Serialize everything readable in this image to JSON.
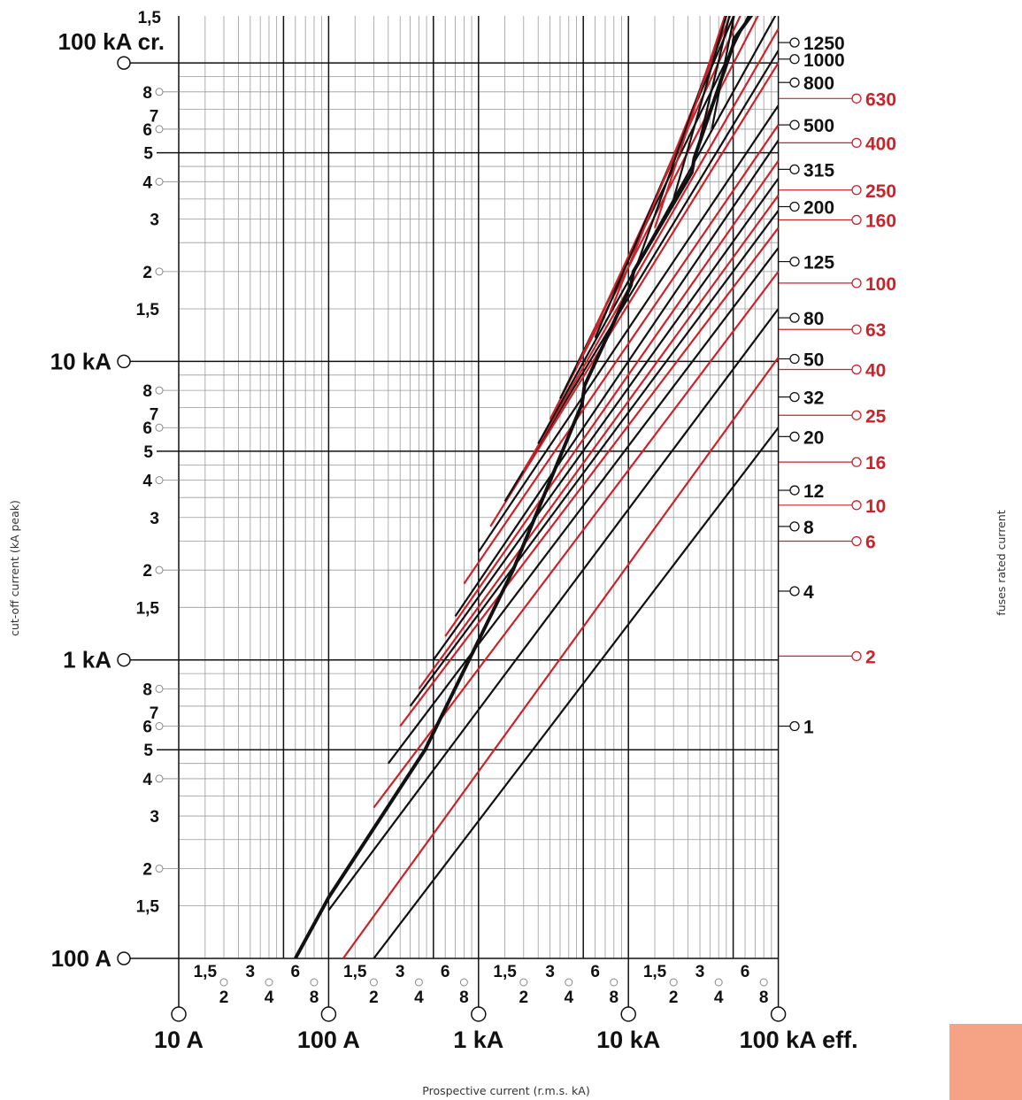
{
  "chart_data": {
    "type": "line",
    "xscale": "log",
    "yscale": "log",
    "xlabel": "Prospective current (r.m.s. kA)",
    "ylabel": "cut-off current (kA peak)",
    "right_label": "fuses rated current",
    "xlim": [
      0.01,
      100
    ],
    "ylim": [
      0.1,
      150
    ],
    "grid": true,
    "x_major_ticks": [
      {
        "value": 0.01,
        "label": "10 A"
      },
      {
        "value": 0.1,
        "label": "100 A"
      },
      {
        "value": 1,
        "label": "1 kA"
      },
      {
        "value": 10,
        "label": "10 kA"
      },
      {
        "value": 100,
        "label": "100 kA eff."
      }
    ],
    "x_minor_ticks": [
      {
        "m": 1.5,
        "label": "1,5",
        "row": 1
      },
      {
        "m": 2,
        "label": "2",
        "row": 2
      },
      {
        "m": 3,
        "label": "3",
        "row": 1
      },
      {
        "m": 4,
        "label": "4",
        "row": 2
      },
      {
        "m": 6,
        "label": "6",
        "row": 1
      },
      {
        "m": 8,
        "label": "8",
        "row": 2
      }
    ],
    "y_major_ticks": [
      {
        "value": 0.1,
        "label": "100 A"
      },
      {
        "value": 1,
        "label": "1 kA"
      },
      {
        "value": 10,
        "label": "10 kA"
      },
      {
        "value": 100,
        "label": "100 kA cr."
      }
    ],
    "y_minor_ticks": [
      {
        "m": 1.5,
        "label": "1,5"
      },
      {
        "m": 2,
        "label": "2"
      },
      {
        "m": 3,
        "label": "3"
      },
      {
        "m": 4,
        "label": "4"
      },
      {
        "m": 5,
        "label": "5"
      },
      {
        "m": 6,
        "label": "6"
      },
      {
        "m": 7,
        "label": "7"
      },
      {
        "m": 8,
        "label": "8"
      }
    ],
    "top_tick_label": "1,5",
    "envelope": {
      "name": "",
      "x": [
        0.06,
        0.1,
        0.44,
        1.7,
        4.9,
        5.1,
        10.4,
        10.8,
        26.5,
        27.5,
        50,
        50.5,
        70
      ],
      "y": [
        0.1,
        0.16,
        0.5,
        2.0,
        7.2,
        8.3,
        18,
        20,
        43,
        48,
        115,
        120,
        150
      ]
    },
    "series": [
      {
        "label": "1",
        "color": "#111111",
        "x": [
          0.2,
          100
        ],
        "y": [
          0.1,
          6.0
        ]
      },
      {
        "label": "2",
        "color": "#cc2229",
        "x": [
          0.125,
          100
        ],
        "y": [
          0.1,
          10.3
        ]
      },
      {
        "label": "4",
        "color": "#111111",
        "x": [
          0.1,
          100
        ],
        "y": [
          0.145,
          15
        ]
      },
      {
        "label": "6",
        "color": "#cc2229",
        "x": [
          0.2,
          100
        ],
        "y": [
          0.32,
          20
        ]
      },
      {
        "label": "8",
        "color": "#111111",
        "x": [
          0.25,
          100
        ],
        "y": [
          0.45,
          24
        ]
      },
      {
        "label": "10",
        "color": "#cc2229",
        "x": [
          0.3,
          100
        ],
        "y": [
          0.6,
          28
        ]
      },
      {
        "label": "12",
        "color": "#111111",
        "x": [
          0.35,
          100
        ],
        "y": [
          0.7,
          32
        ]
      },
      {
        "label": "16",
        "color": "#cc2229",
        "x": [
          0.4,
          100
        ],
        "y": [
          0.8,
          36
        ]
      },
      {
        "label": "20",
        "color": "#111111",
        "x": [
          0.5,
          100
        ],
        "y": [
          1.0,
          41
        ]
      },
      {
        "label": "25",
        "color": "#cc2229",
        "x": [
          0.6,
          100
        ],
        "y": [
          1.2,
          47
        ]
      },
      {
        "label": "32",
        "color": "#111111",
        "x": [
          0.7,
          100
        ],
        "y": [
          1.4,
          55
        ]
      },
      {
        "label": "40",
        "color": "#cc2229",
        "x": [
          0.8,
          100
        ],
        "y": [
          1.8,
          62
        ]
      },
      {
        "label": "50",
        "color": "#111111",
        "x": [
          1.0,
          100
        ],
        "y": [
          2.3,
          72
        ]
      },
      {
        "label": "63",
        "color": "#cc2229",
        "x": [
          1.2,
          100
        ],
        "y": [
          2.8,
          100
        ]
      },
      {
        "label": "80",
        "color": "#111111",
        "x": [
          1.5,
          100
        ],
        "y": [
          3.4,
          110
        ]
      },
      {
        "label": "100",
        "color": "#cc2229",
        "x": [
          2.0,
          100
        ],
        "y": [
          4.3,
          130
        ]
      },
      {
        "label": "125",
        "color": "#111111",
        "x": [
          2.5,
          100
        ],
        "y": [
          5.3,
          150
        ]
      },
      {
        "label": "160",
        "color": "#cc2229",
        "x": [
          3.0,
          100
        ],
        "y": [
          6.4,
          195
        ]
      },
      {
        "label": "200",
        "color": "#111111",
        "x": [
          3.5,
          100
        ],
        "y": [
          7.5,
          230
        ]
      },
      {
        "label": "250",
        "color": "#cc2229",
        "x": [
          4.5,
          100
        ],
        "y": [
          9.5,
          270
        ]
      },
      {
        "label": "315",
        "color": "#111111",
        "x": [
          6.0,
          100
        ],
        "y": [
          12,
          320
        ]
      },
      {
        "label": "400",
        "color": "#cc2229",
        "x": [
          7.5,
          100
        ],
        "y": [
          14.5,
          360
        ]
      },
      {
        "label": "500",
        "color": "#111111",
        "x": [
          10,
          100
        ],
        "y": [
          17.5,
          440
        ]
      },
      {
        "label": "630",
        "color": "#cc2229",
        "x": [
          15,
          100
        ],
        "y": [
          28,
          500
        ]
      },
      {
        "label": "800",
        "color": "#111111",
        "x": [
          20,
          100
        ],
        "y": [
          35,
          580
        ]
      },
      {
        "label": "1000",
        "color": "#111111",
        "x": [
          28,
          100
        ],
        "y": [
          48,
          700
        ]
      },
      {
        "label": "1250",
        "color": "#111111",
        "x": [
          36,
          100
        ],
        "y": [
          60,
          820
        ]
      }
    ],
    "fuse_labels": [
      {
        "text": "1",
        "color": "#111111",
        "y": 0.6
      },
      {
        "text": "2",
        "color": "#cc2229",
        "y": 1.03
      },
      {
        "text": "4",
        "color": "#111111",
        "y": 1.7
      },
      {
        "text": "6",
        "color": "#cc2229",
        "y": 2.5
      },
      {
        "text": "8",
        "color": "#111111",
        "y": 2.8
      },
      {
        "text": "10",
        "color": "#cc2229",
        "y": 3.3
      },
      {
        "text": "12",
        "color": "#111111",
        "y": 3.7
      },
      {
        "text": "16",
        "color": "#cc2229",
        "y": 4.6
      },
      {
        "text": "20",
        "color": "#111111",
        "y": 5.6
      },
      {
        "text": "25",
        "color": "#cc2229",
        "y": 6.6
      },
      {
        "text": "32",
        "color": "#111111",
        "y": 7.6
      },
      {
        "text": "40",
        "color": "#cc2229",
        "y": 9.4
      },
      {
        "text": "50",
        "color": "#111111",
        "y": 10.2
      },
      {
        "text": "63",
        "color": "#cc2229",
        "y": 12.8
      },
      {
        "text": "80",
        "color": "#111111",
        "y": 14
      },
      {
        "text": "100",
        "color": "#cc2229",
        "y": 18.3
      },
      {
        "text": "125",
        "color": "#111111",
        "y": 21.6
      },
      {
        "text": "160",
        "color": "#cc2229",
        "y": 29.8
      },
      {
        "text": "200",
        "color": "#111111",
        "y": 33
      },
      {
        "text": "250",
        "color": "#cc2229",
        "y": 37.5
      },
      {
        "text": "315",
        "color": "#111111",
        "y": 44
      },
      {
        "text": "400",
        "color": "#cc2229",
        "y": 54
      },
      {
        "text": "500",
        "color": "#111111",
        "y": 62
      },
      {
        "text": "630",
        "color": "#cc2229",
        "y": 76
      },
      {
        "text": "800",
        "color": "#111111",
        "y": 86
      },
      {
        "text": "1000",
        "color": "#111111",
        "y": 103
      },
      {
        "text": "1250",
        "color": "#111111",
        "y": 117
      }
    ]
  }
}
